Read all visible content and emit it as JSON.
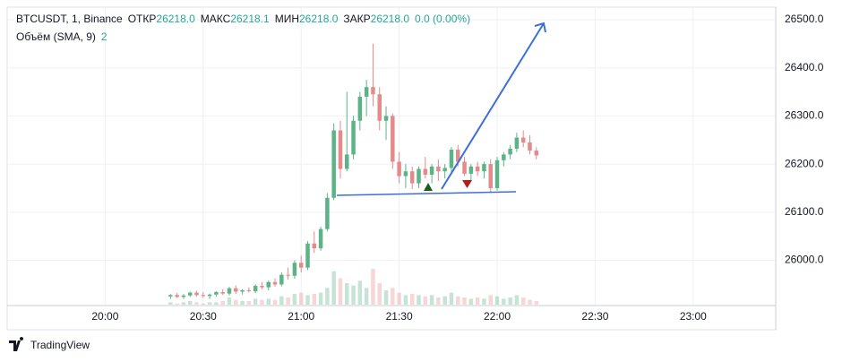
{
  "chart_data": {
    "type": "candlestick",
    "title": "BTCUSDT, 1, Binance",
    "legend_items": [
      {
        "label": "ОТКР",
        "value": "26218.0"
      },
      {
        "label": "МАКС",
        "value": "26218.1"
      },
      {
        "label": "МИН",
        "value": "26218.0"
      },
      {
        "label": "ЗАКР",
        "value": "26218.0"
      }
    ],
    "change": "0.0 (0.00%)",
    "volume_title": "Объём (SMA, 9)",
    "volume_value": "2",
    "up_color": "#5cb387",
    "down_color": "#e58a8a",
    "grid": true,
    "x": [
      1220,
      1222,
      1224,
      1226,
      1228,
      1230,
      1232,
      1234,
      1236,
      1238,
      1240,
      1242,
      1244,
      1246,
      1248,
      1250,
      1252,
      1254,
      1256,
      1258,
      1260,
      1262,
      1264,
      1266,
      1268,
      1270,
      1272,
      1274,
      1276,
      1278,
      1280,
      1282,
      1284,
      1286,
      1288,
      1290,
      1292,
      1294,
      1296,
      1298,
      1300,
      1302,
      1304,
      1306,
      1308,
      1310,
      1312,
      1314,
      1316,
      1318,
      1320,
      1322,
      1324,
      1326,
      1328,
      1330,
      1332
    ],
    "open": [
      25925,
      25928,
      25924,
      25927,
      25933,
      25928,
      25926,
      25929,
      25934,
      25931,
      25942,
      25935,
      25938,
      25936,
      25947,
      25944,
      25955,
      25950,
      25970,
      25968,
      25995,
      25985,
      26035,
      26025,
      26065,
      26130,
      26270,
      26190,
      26220,
      26290,
      26340,
      26360,
      26345,
      26290,
      26300,
      26205,
      26175,
      26185,
      26160,
      26190,
      26178,
      26195,
      26185,
      26192,
      26230,
      26205,
      26180,
      26195,
      26185,
      26200,
      26150,
      26208,
      26220,
      26232,
      26255,
      26245,
      26228
    ],
    "high": [
      25930,
      25932,
      25930,
      25935,
      25937,
      25934,
      25931,
      25936,
      25940,
      25945,
      25948,
      25940,
      25944,
      25950,
      25955,
      25958,
      25962,
      25975,
      25985,
      26000,
      26010,
      26040,
      26060,
      26070,
      26140,
      26285,
      26290,
      26350,
      26300,
      26350,
      26375,
      26450,
      26360,
      26320,
      26305,
      26225,
      26200,
      26195,
      26195,
      26215,
      26200,
      26210,
      26200,
      26235,
      26240,
      26215,
      26200,
      26205,
      26205,
      26210,
      26215,
      26225,
      26240,
      26265,
      26270,
      26260,
      26235
    ],
    "low": [
      25920,
      25922,
      25920,
      25924,
      25925,
      25922,
      25920,
      25925,
      25928,
      25927,
      25930,
      25929,
      25933,
      25932,
      25940,
      25938,
      25945,
      25946,
      25960,
      25962,
      25975,
      25980,
      26015,
      26020,
      26060,
      26125,
      26170,
      26185,
      26210,
      26270,
      26300,
      26320,
      26270,
      26250,
      26190,
      26160,
      26150,
      26148,
      26150,
      26170,
      26160,
      26165,
      26170,
      26180,
      26195,
      26175,
      26165,
      26175,
      26170,
      26140,
      26145,
      26195,
      26210,
      26225,
      26235,
      26220,
      26210
    ],
    "close": [
      25928,
      25924,
      25927,
      25933,
      25928,
      25926,
      25929,
      25934,
      25931,
      25942,
      25935,
      25938,
      25936,
      25947,
      25944,
      25955,
      25950,
      25970,
      25968,
      25995,
      25985,
      26035,
      26025,
      26065,
      26130,
      26270,
      26190,
      26220,
      26290,
      26340,
      26360,
      26345,
      26290,
      26300,
      26205,
      26175,
      26185,
      26160,
      26190,
      26178,
      26195,
      26185,
      26192,
      26230,
      26205,
      26180,
      26195,
      26185,
      26200,
      26150,
      26208,
      26220,
      26232,
      26255,
      26245,
      26228,
      26218
    ],
    "volume": [
      2,
      1,
      2,
      3,
      2,
      1,
      2,
      2,
      3,
      6,
      4,
      3,
      3,
      5,
      4,
      5,
      4,
      7,
      6,
      9,
      10,
      8,
      9,
      10,
      14,
      28,
      22,
      18,
      16,
      20,
      14,
      30,
      18,
      12,
      14,
      10,
      8,
      9,
      8,
      7,
      8,
      6,
      7,
      10,
      7,
      6,
      5,
      6,
      5,
      8,
      7,
      5,
      6,
      8,
      6,
      4,
      3
    ],
    "xlim": [
      1170,
      1405
    ],
    "xticks": [
      {
        "value": 1200,
        "label": "20:00"
      },
      {
        "value": 1230,
        "label": "20:30"
      },
      {
        "value": 1260,
        "label": "21:00"
      },
      {
        "value": 1290,
        "label": "21:30"
      },
      {
        "value": 1320,
        "label": "22:00"
      },
      {
        "value": 1350,
        "label": "22:30"
      },
      {
        "value": 1380,
        "label": "23:00"
      }
    ],
    "ylim": [
      25908,
      26526
    ],
    "yticks": [
      {
        "value": 26000,
        "label": "26000.0"
      },
      {
        "value": 26100,
        "label": "26100.0"
      },
      {
        "value": 26200,
        "label": "26200.0"
      },
      {
        "value": 26300,
        "label": "26300.0"
      },
      {
        "value": 26400,
        "label": "26400.0"
      },
      {
        "value": 26500,
        "label": "26500.0"
      }
    ]
  },
  "branding": "TradingView"
}
